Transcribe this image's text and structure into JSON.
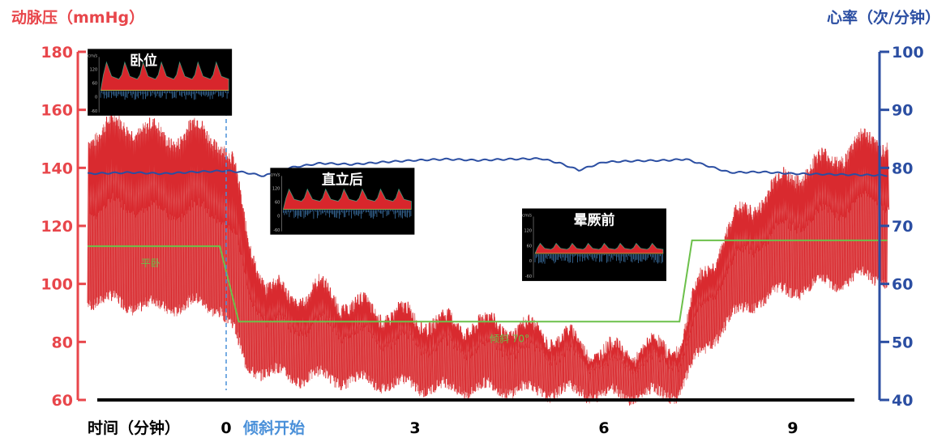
{
  "colors": {
    "left_axis": "#e8464b",
    "right_axis": "#2b4ea2",
    "bp_dark": "#d92a2f",
    "bp_light": "#e06a6a",
    "hr_line": "#2b4ea2",
    "phase_line": "#6cc04a",
    "tilt_marker": "#4a90d9",
    "time_axis": "#000000"
  },
  "chart_data": {
    "type": "line",
    "xlabel": "时间（分钟）",
    "xlim": [
      -4,
      11
    ],
    "x_ticks": [
      {
        "x": 0,
        "label": "0"
      },
      {
        "x": 3,
        "label": "3"
      },
      {
        "x": 6,
        "label": "6"
      },
      {
        "x": 9,
        "label": "9"
      }
    ],
    "tilt_start_label": "倾斜开始",
    "tilt_start_x": 0,
    "left_axis": {
      "label": "动脉压（mmHg）",
      "ylim": [
        60,
        180
      ],
      "ticks": [
        60,
        80,
        100,
        120,
        140,
        160,
        180
      ]
    },
    "right_axis": {
      "label": "心率（次/分钟）",
      "ylim": [
        40,
        100
      ],
      "ticks": [
        40,
        50,
        60,
        70,
        80,
        90,
        100
      ]
    },
    "series": [
      {
        "kind": "blood_pressure_envelope",
        "x": [
          -2.2,
          -1.5,
          -1,
          -0.5,
          -0.1,
          0.1,
          0.3,
          0.6,
          1.0,
          1.5,
          2.0,
          2.5,
          3.0,
          3.5,
          4.0,
          4.5,
          5.0,
          5.5,
          6.0,
          6.5,
          7.0,
          7.2,
          7.5,
          8.0,
          8.5,
          9.0,
          9.5,
          10.0,
          10.5
        ],
        "systolic": [
          152,
          155,
          150,
          153,
          150,
          140,
          118,
          100,
          95,
          98,
          92,
          90,
          88,
          86,
          86,
          85,
          83,
          80,
          76,
          77,
          78,
          80,
          100,
          120,
          130,
          138,
          142,
          148,
          150
        ],
        "diastolic": [
          95,
          93,
          92,
          93,
          92,
          85,
          72,
          70,
          68,
          68,
          67,
          66,
          65,
          64,
          64,
          64,
          63,
          63,
          62,
          62,
          62,
          63,
          75,
          88,
          95,
          98,
          100,
          102,
          102
        ]
      },
      {
        "kind": "heart_rate",
        "x": [
          -2.2,
          -1.5,
          -1,
          -0.5,
          0,
          0.3,
          0.6,
          1.0,
          1.5,
          2.0,
          2.5,
          3.0,
          3.5,
          4.0,
          4.5,
          5.0,
          5.3,
          5.6,
          6.0,
          6.5,
          7.0,
          7.3,
          7.6,
          8.0,
          8.5,
          9.0,
          9.5,
          10.0,
          10.5
        ],
        "y": [
          79,
          79.2,
          79,
          79.3,
          79.5,
          79.2,
          78.6,
          80,
          80.8,
          80.6,
          81,
          81.3,
          81.5,
          81.3,
          81.5,
          81.6,
          80.8,
          79.6,
          81,
          81.2,
          81.3,
          81.5,
          80.5,
          79.2,
          79.3,
          79,
          78.9,
          78.8,
          78.7
        ]
      },
      {
        "kind": "phase_indicator",
        "x": [
          -2.2,
          -0.1,
          0.2,
          7.0,
          7.2,
          7.4,
          10.5
        ],
        "y": [
          113,
          113,
          87,
          87,
          87,
          115,
          115
        ]
      }
    ],
    "phase_labels": [
      {
        "label": "平卧",
        "x": -1.2,
        "y": 106
      },
      {
        "label": "倾斜 70°",
        "x": 4.5,
        "y": 80
      }
    ]
  },
  "insets": [
    {
      "title": "卧位",
      "x": -2.2,
      "y_top": 181,
      "y_bottom": 158,
      "waveform": "tall",
      "min_labels": [
        "cm/s",
        "120",
        "60",
        "0",
        "-60"
      ]
    },
    {
      "title": "直立后",
      "x": 0.7,
      "y_top": 140,
      "y_bottom": 117,
      "waveform": "medium",
      "min_labels": [
        "cm/s",
        "120",
        "60",
        "0",
        "-60"
      ]
    },
    {
      "title": "晕厥前",
      "x": 4.7,
      "y_top": 126,
      "y_bottom": 101,
      "waveform": "small",
      "min_labels": [
        "cm/s",
        "120",
        "60",
        "0",
        "-60"
      ]
    }
  ]
}
